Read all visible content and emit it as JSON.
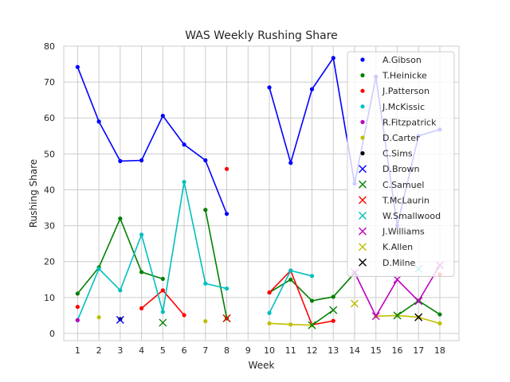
{
  "chart_data": {
    "type": "line",
    "title": "WAS Weekly Rushing Share",
    "xlabel": "Week",
    "ylabel": "Rushing Share",
    "xlim": [
      0.35,
      18.9
    ],
    "ylim": [
      -2,
      80
    ],
    "x_ticks": [
      1,
      2,
      3,
      4,
      5,
      6,
      7,
      8,
      9,
      10,
      11,
      12,
      13,
      14,
      15,
      16,
      17,
      18
    ],
    "y_ticks": [
      0,
      10,
      20,
      30,
      40,
      50,
      60,
      70,
      80
    ],
    "grid": true,
    "legend_position": "top-right",
    "series": [
      {
        "name": "A.Gibson",
        "color": "#0000ff",
        "marker": "dot",
        "line": true,
        "values": [
          74.2,
          59.0,
          48.0,
          48.2,
          60.6,
          52.6,
          48.2,
          33.3,
          null,
          68.5,
          47.5,
          68.0,
          76.7,
          41.7,
          71.5,
          30.0,
          55.0,
          56.8
        ]
      },
      {
        "name": "T.Heinicke",
        "color": "#008000",
        "marker": "dot",
        "line": true,
        "values": [
          11.1,
          18.4,
          32.0,
          17.1,
          15.2,
          null,
          34.4,
          4.2,
          null,
          11.4,
          15.0,
          9.1,
          10.2,
          16.8,
          null,
          null,
          9.1,
          5.3
        ]
      },
      {
        "name": "J.Patterson",
        "color": "#ff0000",
        "marker": "dot",
        "line": true,
        "values": [
          7.4,
          null,
          null,
          7.0,
          12.0,
          5.1,
          null,
          45.8,
          null,
          11.4,
          17.5,
          2.4,
          3.5,
          null,
          null,
          null,
          null,
          16.4
        ]
      },
      {
        "name": "J.McKissic",
        "color": "#00bfbf",
        "marker": "dot",
        "line": true,
        "values": [
          3.7,
          18.0,
          12.0,
          27.5,
          6.0,
          42.2,
          13.9,
          12.5,
          null,
          5.7,
          17.5,
          16.0,
          null,
          null,
          null,
          null,
          null,
          null
        ]
      },
      {
        "name": "R.Fitzpatrick",
        "color": "#bf00bf",
        "marker": "dot",
        "line": true,
        "values": [
          3.7,
          null,
          null,
          null,
          null,
          null,
          null,
          null,
          null,
          null,
          null,
          null,
          null,
          null,
          null,
          null,
          null,
          null
        ]
      },
      {
        "name": "D.Carter",
        "color": "#bfbf00",
        "marker": "dot",
        "line": true,
        "values": [
          null,
          4.5,
          null,
          null,
          null,
          null,
          3.4,
          null,
          null,
          2.8,
          2.5,
          2.3,
          null,
          null,
          4.8,
          5.0,
          4.5,
          2.8
        ]
      },
      {
        "name": "C.Sims",
        "color": "#000000",
        "marker": "dot",
        "line": true,
        "values": [
          null,
          null,
          4.0,
          null,
          null,
          null,
          null,
          null,
          null,
          null,
          null,
          null,
          null,
          null,
          null,
          null,
          null,
          null
        ]
      },
      {
        "name": "D.Brown",
        "color": "#0000ff",
        "marker": "x",
        "line": true,
        "values": [
          null,
          null,
          3.8,
          null,
          null,
          null,
          null,
          null,
          null,
          null,
          null,
          null,
          null,
          null,
          null,
          null,
          null,
          null
        ]
      },
      {
        "name": "C.Samuel",
        "color": "#008000",
        "marker": "x",
        "line": true,
        "values": [
          null,
          null,
          null,
          null,
          3.0,
          null,
          null,
          4.2,
          null,
          null,
          null,
          2.3,
          6.5,
          null,
          null,
          5.0,
          9.1,
          null
        ]
      },
      {
        "name": "T.McLaurin",
        "color": "#ff0000",
        "marker": "x",
        "line": true,
        "values": [
          null,
          null,
          null,
          null,
          null,
          null,
          null,
          4.2,
          null,
          null,
          null,
          null,
          null,
          null,
          null,
          null,
          null,
          null
        ]
      },
      {
        "name": "W.Smallwood",
        "color": "#00bfbf",
        "marker": "x",
        "line": true,
        "values": [
          null,
          null,
          null,
          null,
          null,
          null,
          null,
          null,
          null,
          null,
          null,
          null,
          null,
          null,
          null,
          null,
          18.0,
          null
        ]
      },
      {
        "name": "J.Williams",
        "color": "#bf00bf",
        "marker": "x",
        "line": true,
        "values": [
          null,
          null,
          null,
          null,
          null,
          null,
          null,
          null,
          null,
          null,
          null,
          null,
          null,
          17.0,
          4.8,
          15.0,
          9.0,
          19.0
        ]
      },
      {
        "name": "K.Allen",
        "color": "#bfbf00",
        "marker": "x",
        "line": true,
        "values": [
          null,
          null,
          null,
          null,
          null,
          null,
          null,
          null,
          null,
          null,
          null,
          null,
          null,
          8.3,
          null,
          null,
          null,
          null
        ]
      },
      {
        "name": "D.Milne",
        "color": "#000000",
        "marker": "x",
        "line": true,
        "values": [
          null,
          null,
          null,
          null,
          null,
          null,
          null,
          null,
          null,
          null,
          null,
          null,
          null,
          null,
          null,
          null,
          4.5,
          null
        ]
      }
    ]
  }
}
